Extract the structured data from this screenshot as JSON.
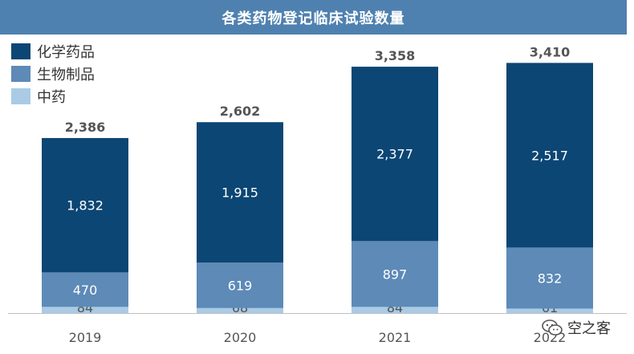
{
  "header": {
    "title": "各类药物登记临床试验数量"
  },
  "legend": [
    {
      "label": "化学药品",
      "color": "#0c4674"
    },
    {
      "label": "生物制品",
      "color": "#5d8ab7"
    },
    {
      "label": "中药",
      "color": "#a9cbe6"
    }
  ],
  "watermark": {
    "text": "空之客",
    "icon": "wechat-icon"
  },
  "chart_data": {
    "type": "bar",
    "stacked": true,
    "title": "各类药物登记临床试验数量",
    "categories": [
      "2019",
      "2020",
      "2021",
      "2022"
    ],
    "series": [
      {
        "name": "中药",
        "values": [
          84,
          68,
          84,
          61
        ],
        "color": "#a9cbe6"
      },
      {
        "name": "生物制品",
        "values": [
          470,
          619,
          897,
          832
        ],
        "color": "#5d8ab7"
      },
      {
        "name": "化学药品",
        "values": [
          1832,
          1915,
          2377,
          2517
        ],
        "color": "#0c4674"
      }
    ],
    "totals": [
      "2,386",
      "2,602",
      "3,358",
      "3,410"
    ],
    "labels": {
      "化学药品": [
        "1,832",
        "1,915",
        "2,377",
        "2,517"
      ],
      "生物制品": [
        "470",
        "619",
        "897",
        "832"
      ],
      "中药": [
        "84",
        "68",
        "84",
        "61"
      ]
    },
    "ylim": [
      0,
      3600
    ],
    "grid": false,
    "legend_position": "top-left"
  }
}
